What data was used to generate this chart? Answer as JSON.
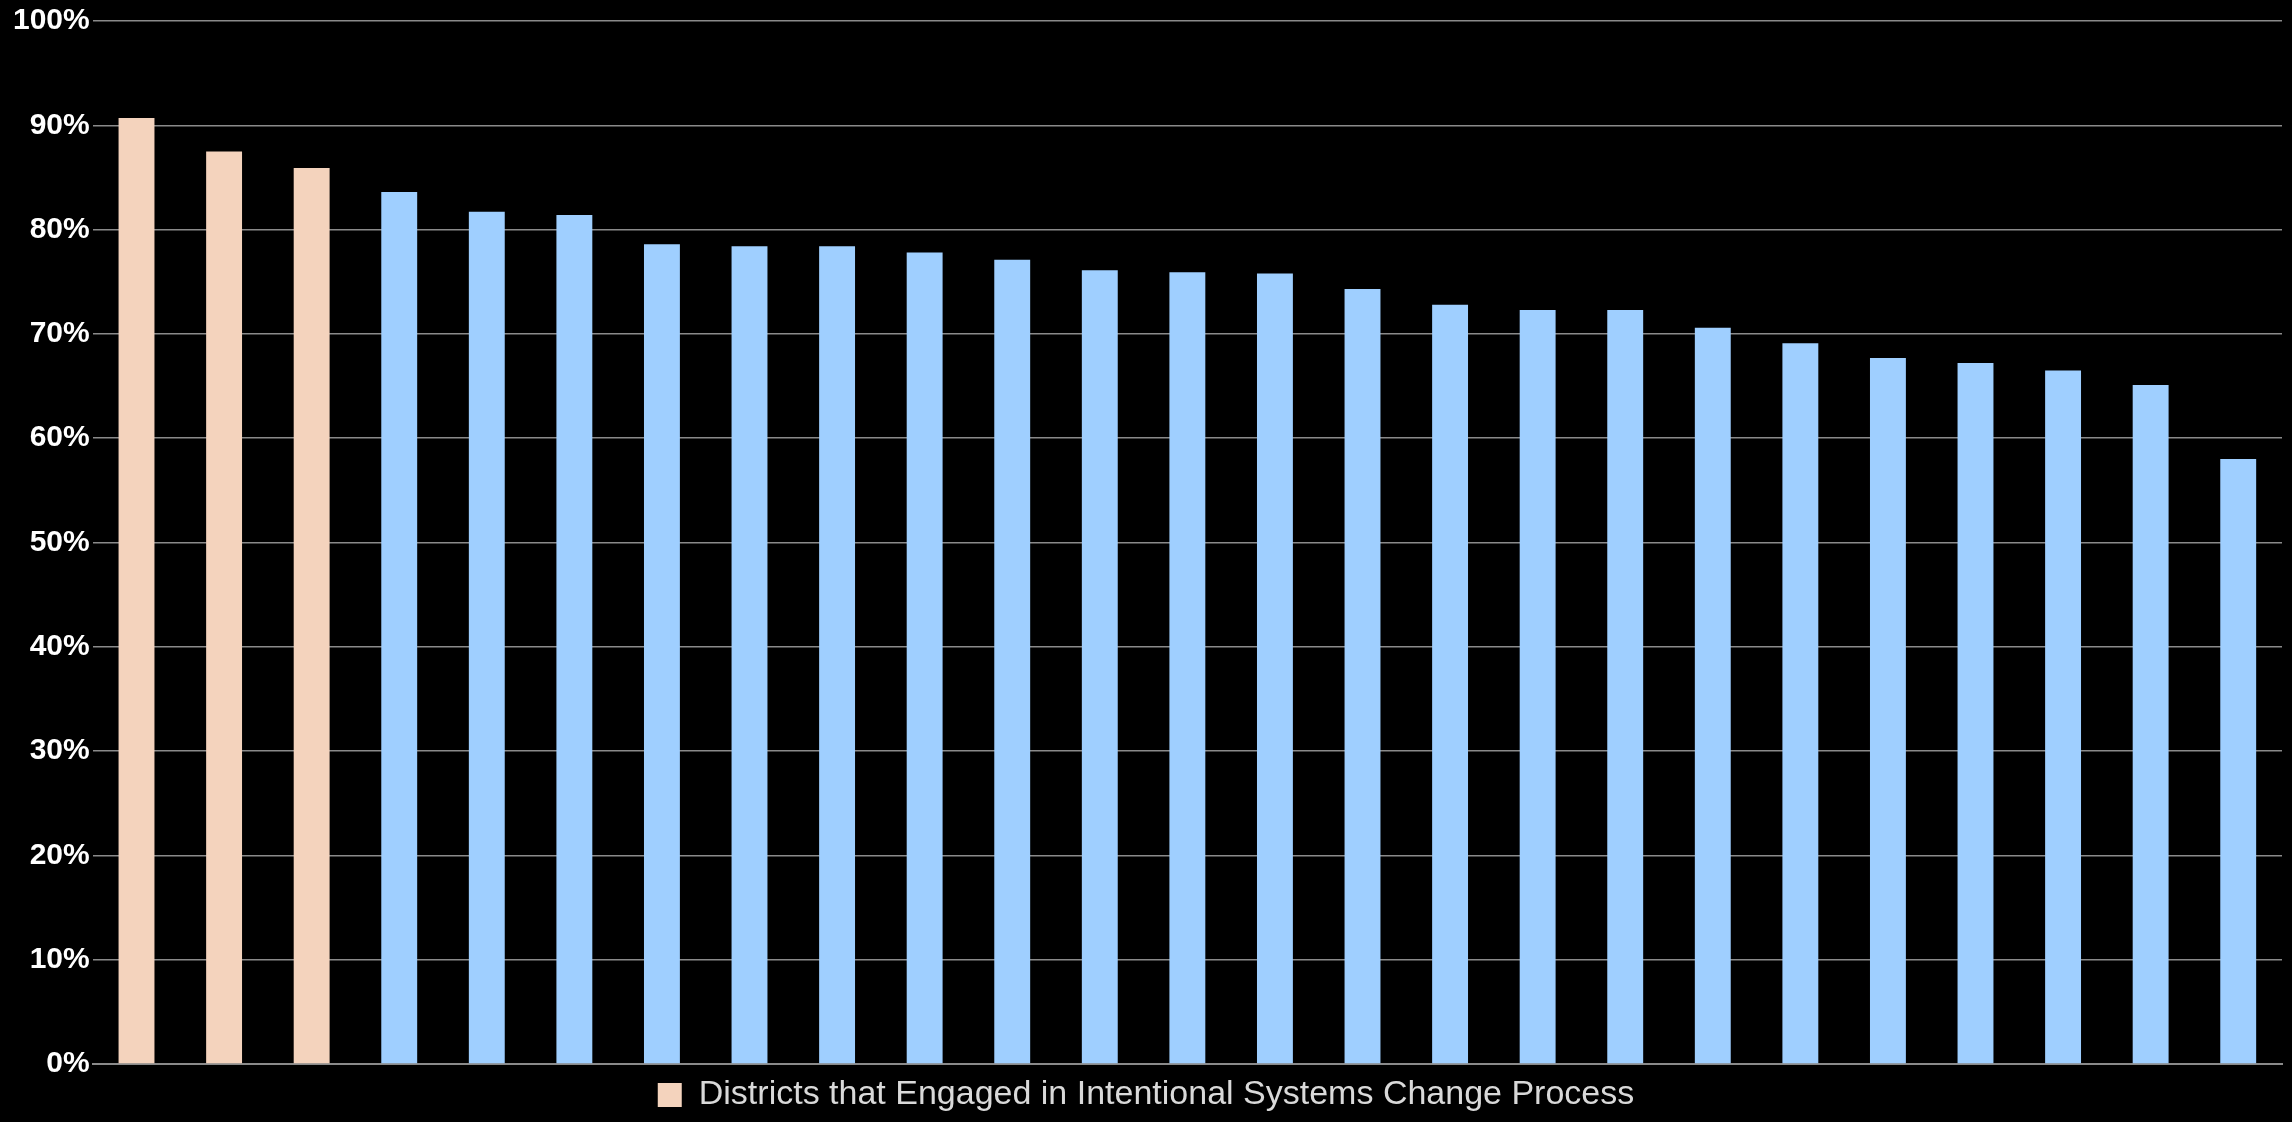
{
  "chart_data": {
    "type": "bar",
    "categories": [
      null,
      null,
      null,
      null,
      null,
      null,
      null,
      null,
      null,
      null,
      null,
      null,
      null,
      null,
      null,
      null,
      null,
      null,
      null,
      null,
      null,
      null,
      null,
      null,
      null
    ],
    "series": [
      {
        "name": "Districts that Engaged in Intentional Systems Change Process",
        "color": "#f4d3bd",
        "values": [
          90.7,
          87.5,
          85.9,
          null,
          null,
          null,
          null,
          null,
          null,
          null,
          null,
          null,
          null,
          null,
          null,
          null,
          null,
          null,
          null,
          null,
          null,
          null,
          null,
          null,
          null
        ]
      },
      {
        "color": "#9fcfff",
        "values": [
          null,
          null,
          null,
          83.6,
          81.7,
          81.4,
          78.6,
          78.4,
          78.4,
          77.8,
          77.1,
          76.1,
          75.9,
          75.8,
          74.3,
          72.8,
          72.3,
          72.3,
          70.6,
          69.1,
          67.7,
          67.2,
          66.5,
          65.1,
          58.0
        ]
      }
    ],
    "ylim": [
      0,
      100
    ],
    "yticks": [
      {
        "value": 0,
        "label": "0%"
      },
      {
        "value": 10,
        "label": "10%"
      },
      {
        "value": 20,
        "label": "20%"
      },
      {
        "value": 30,
        "label": "30%"
      },
      {
        "value": 40,
        "label": "40%"
      },
      {
        "value": 50,
        "label": "50%"
      },
      {
        "value": 60,
        "label": "60%"
      },
      {
        "value": 70,
        "label": "70%"
      },
      {
        "value": 80,
        "label": "80%"
      },
      {
        "value": 90,
        "label": "90%"
      },
      {
        "value": 100,
        "label": "100%"
      }
    ],
    "grid": "y",
    "legend": "bottom",
    "tick_labels": "y"
  }
}
